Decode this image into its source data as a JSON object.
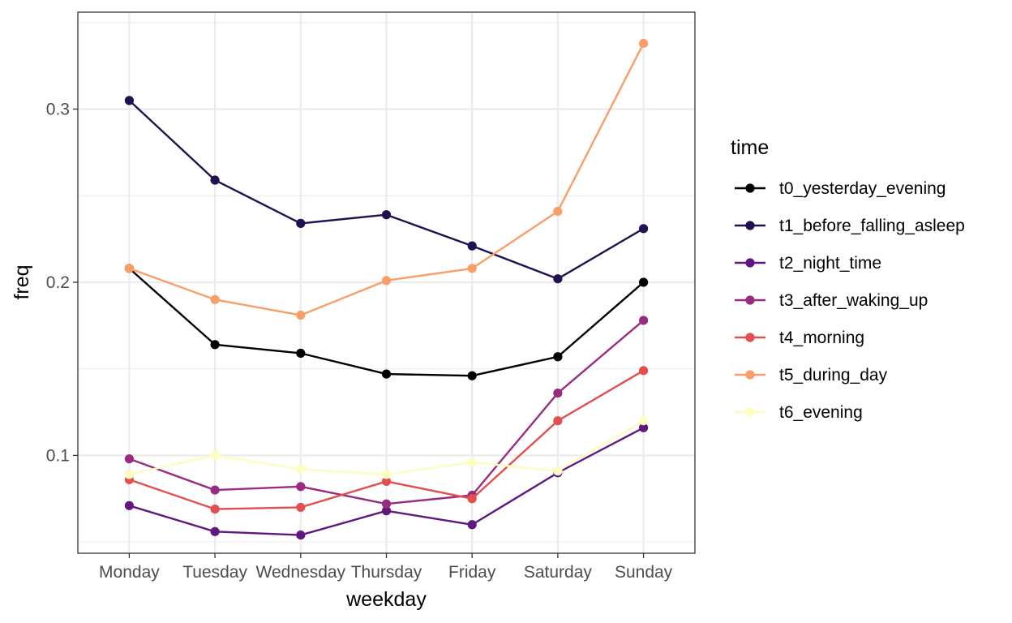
{
  "chart_data": {
    "type": "line",
    "xlabel": "weekday",
    "ylabel": "freq",
    "categories": [
      "Monday",
      "Tuesday",
      "Wednesday",
      "Thursday",
      "Friday",
      "Saturday",
      "Sunday"
    ],
    "ylim": [
      0.0435,
      0.356
    ],
    "yticks": [
      0.1,
      0.2,
      0.3
    ],
    "ytick_labels": [
      "0.1",
      "0.2",
      "0.3"
    ],
    "grid": true,
    "legend": {
      "title": "time",
      "position": "right"
    },
    "series": [
      {
        "name": "t0_yesterday_evening",
        "color": "#000004",
        "values": [
          0.208,
          0.164,
          0.159,
          0.147,
          0.146,
          0.157,
          0.2
        ]
      },
      {
        "name": "t1_before_falling_asleep",
        "color": "#221150",
        "values": [
          0.305,
          0.259,
          0.234,
          0.239,
          0.221,
          0.202,
          0.231
        ]
      },
      {
        "name": "t2_night_time",
        "color": "#5f187f",
        "values": [
          0.071,
          0.056,
          0.054,
          0.068,
          0.06,
          0.09,
          0.116
        ]
      },
      {
        "name": "t3_after_waking_up",
        "color": "#982d80",
        "values": [
          0.098,
          0.08,
          0.082,
          0.072,
          0.077,
          0.136,
          0.178
        ]
      },
      {
        "name": "t4_morning",
        "color": "#e34f4f",
        "values": [
          0.086,
          0.069,
          0.07,
          0.085,
          0.075,
          0.12,
          0.149
        ]
      },
      {
        "name": "t5_during_day",
        "color": "#f99e68",
        "values": [
          0.208,
          0.19,
          0.181,
          0.201,
          0.208,
          0.241,
          0.338
        ]
      },
      {
        "name": "t6_evening",
        "color": "#fcfdbf",
        "values": [
          0.089,
          0.1,
          0.092,
          0.089,
          0.096,
          0.091,
          0.12
        ]
      }
    ]
  }
}
